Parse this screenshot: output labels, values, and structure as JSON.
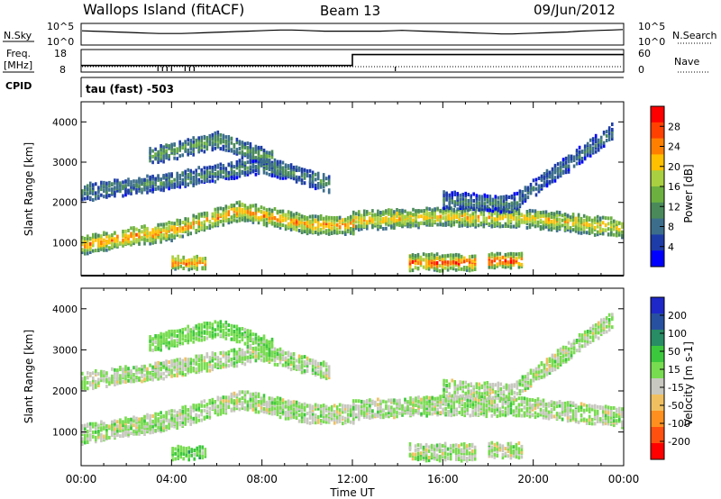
{
  "header": {
    "site": "Wallops Island (fitACF)",
    "beam": "Beam 13",
    "date": "09/Jun/2012"
  },
  "noise_panel": {
    "left_label": "N.Sky",
    "right_label": "N.Search",
    "left_ticks": [
      "10^5",
      "10^0"
    ],
    "right_ticks": [
      "10^5",
      "10^0"
    ],
    "sky_trace": [
      3.6,
      3.5,
      3.4,
      3.3,
      3.2,
      3.1,
      3.0,
      2.9,
      2.9,
      2.9,
      3.0,
      3.1,
      3.2,
      3.3,
      3.4,
      3.5,
      3.6,
      3.7,
      3.8,
      3.8,
      3.7,
      3.6,
      3.5,
      3.5,
      3.5,
      3.5,
      3.5,
      3.5,
      3.6,
      3.7,
      3.6,
      3.5,
      3.4,
      3.3,
      3.2,
      3.1,
      3.0,
      2.9,
      2.8,
      2.8,
      2.9,
      3.0,
      3.1,
      3.2,
      3.3,
      3.5,
      3.6,
      3.7,
      3.8,
      3.9
    ]
  },
  "freq_panel": {
    "left_label": "Freq.",
    "left_unit": "[MHz]",
    "right_label": "Nave",
    "left_ticks": [
      "18",
      "8"
    ],
    "right_ticks": [
      "60",
      "0"
    ],
    "freq_steps": [
      [
        0,
        10.4
      ],
      [
        12,
        15.9
      ],
      [
        24,
        15.9
      ]
    ]
  },
  "cpid": {
    "label": "CPID",
    "mode": "tau (fast) -503"
  },
  "power_panel": {
    "ylabel": "Slant Range [km]",
    "colorbar_label": "Power [dB]",
    "colorbar_ticks": [
      "28",
      "24",
      "20",
      "16",
      "12",
      "8",
      "4"
    ],
    "colors": [
      "#0000ff",
      "#1e3ca8",
      "#3c6e8c",
      "#4a8a5a",
      "#6cb040",
      "#a8d040",
      "#ffc000",
      "#ff8000",
      "#ff4000",
      "#ff0000"
    ]
  },
  "velocity_panel": {
    "ylabel": "Slant Range [km]",
    "colorbar_label": "Velocity [m s-1]",
    "colorbar_ticks": [
      "200",
      "100",
      "50",
      "15",
      "-15",
      "-50",
      "-100",
      "-200"
    ],
    "colors": [
      "#1e28c8",
      "#2850a0",
      "#288c64",
      "#3cc83c",
      "#78dc50",
      "#c8c8c0",
      "#f0c060",
      "#ff9020",
      "#ff5010",
      "#ff0000"
    ]
  },
  "x_axis": {
    "label": "Time UT",
    "ticks": [
      "00:00",
      "04:00",
      "08:00",
      "12:00",
      "16:00",
      "20:00",
      "00:00"
    ]
  },
  "chart_data": [
    {
      "type": "heatmap",
      "title": "",
      "xlabel": "",
      "ylabel": "Slant Range [km]",
      "xlim": [
        0,
        24
      ],
      "ylim": [
        180,
        4500
      ],
      "yticks": [
        1000,
        2000,
        3000,
        4000
      ],
      "colorbar": {
        "label": "Power [dB]",
        "range": [
          0,
          30
        ]
      },
      "bands": [
        {
          "t": [
            0,
            4,
            7,
            10,
            12
          ],
          "range": [
            1000,
            1350,
            1850,
            1500,
            1500
          ],
          "width": 220,
          "value": 22
        },
        {
          "t": [
            12,
            16,
            20,
            24
          ],
          "range": [
            1600,
            1700,
            1650,
            1400
          ],
          "width": 220,
          "value": 20
        },
        {
          "t": [
            0,
            4,
            8,
            11
          ],
          "range": [
            2300,
            2600,
            3000,
            2500
          ],
          "width": 200,
          "value": 10
        },
        {
          "t": [
            3,
            6,
            8.5
          ],
          "range": [
            3200,
            3600,
            3100
          ],
          "width": 200,
          "value": 12
        },
        {
          "t": [
            16,
            19,
            23.5
          ],
          "range": [
            2100,
            2000,
            3800
          ],
          "width": 180,
          "value": 9
        },
        {
          "t": [
            14.5,
            17.5
          ],
          "range": [
            550,
            550
          ],
          "width": 180,
          "value": 26
        },
        {
          "t": [
            18,
            19.5
          ],
          "range": [
            600,
            600
          ],
          "width": 160,
          "value": 27
        },
        {
          "t": [
            4,
            5.5
          ],
          "range": [
            550,
            550
          ],
          "width": 150,
          "value": 25
        }
      ]
    },
    {
      "type": "heatmap",
      "title": "",
      "xlabel": "Time UT",
      "ylabel": "Slant Range [km]",
      "xlim": [
        0,
        24
      ],
      "ylim": [
        180,
        4500
      ],
      "yticks": [
        1000,
        2000,
        3000,
        4000
      ],
      "colorbar": {
        "label": "Velocity [m s-1]",
        "range": [
          -200,
          200
        ]
      },
      "bands": [
        {
          "t": [
            0,
            4,
            7,
            10,
            12
          ],
          "range": [
            1000,
            1350,
            1850,
            1500,
            1500
          ],
          "width": 220,
          "value": 0
        },
        {
          "t": [
            12,
            16,
            20,
            24
          ],
          "range": [
            1600,
            1700,
            1650,
            1400
          ],
          "width": 220,
          "value": 0
        },
        {
          "t": [
            0,
            4,
            8,
            11
          ],
          "range": [
            2300,
            2600,
            3000,
            2500
          ],
          "width": 200,
          "value": 0
        },
        {
          "t": [
            3,
            6,
            8.5
          ],
          "range": [
            3200,
            3600,
            3100
          ],
          "width": 200,
          "value": 30
        },
        {
          "t": [
            16,
            19,
            23.5
          ],
          "range": [
            2100,
            2000,
            3800
          ],
          "width": 180,
          "value": 0
        },
        {
          "t": [
            14.5,
            17.5
          ],
          "range": [
            550,
            550
          ],
          "width": 180,
          "value": 0
        },
        {
          "t": [
            18,
            19.5
          ],
          "range": [
            600,
            600
          ],
          "width": 160,
          "value": 0
        },
        {
          "t": [
            4,
            5.5
          ],
          "range": [
            550,
            550
          ],
          "width": 150,
          "value": 40
        }
      ]
    }
  ]
}
